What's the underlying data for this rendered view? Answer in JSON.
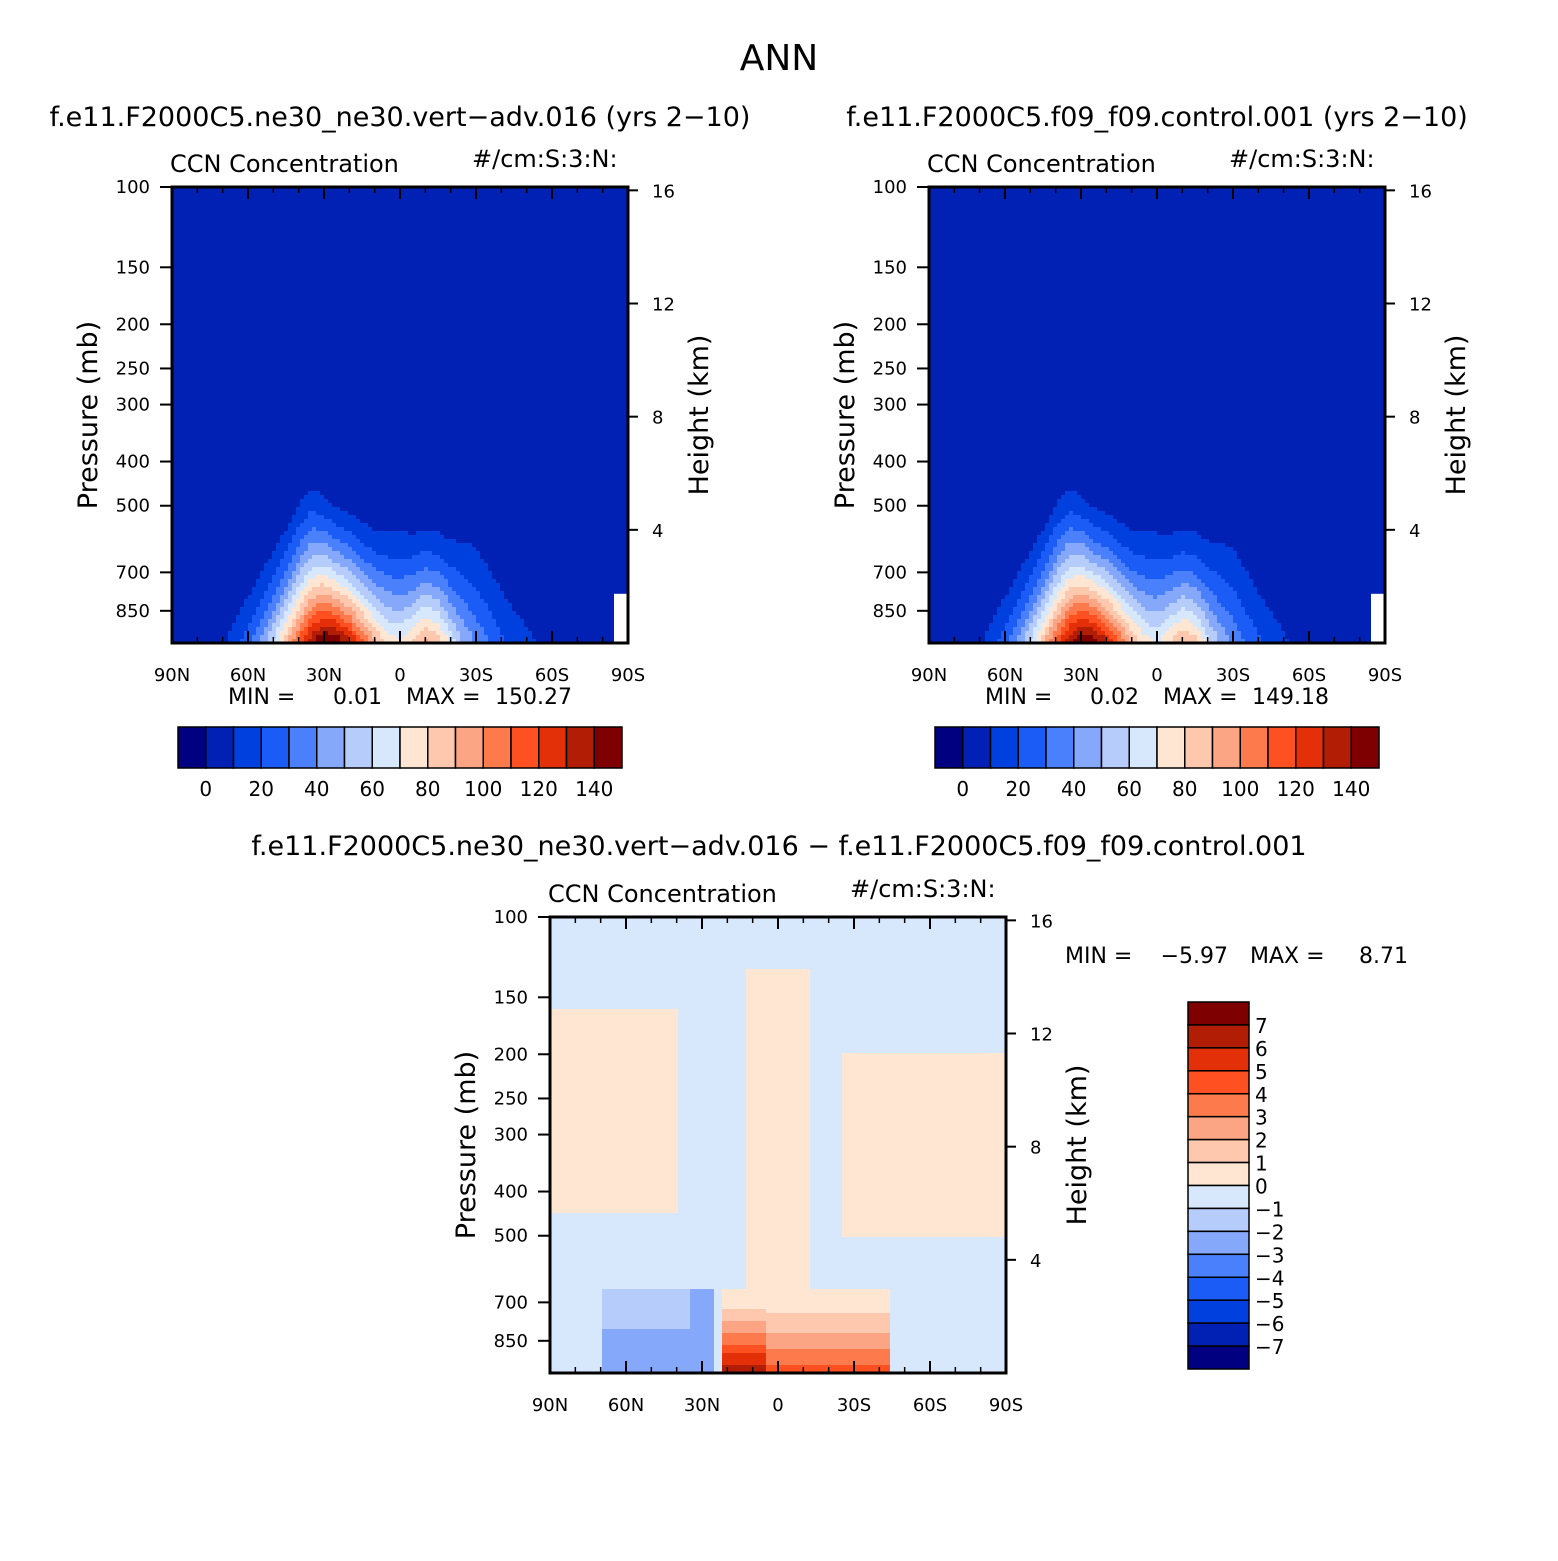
{
  "figure": {
    "title": "ANN",
    "panel_titles": [
      "f.e11.F2000C5.ne30_ne30.vert−adv.016 (yrs 2−10)",
      "f.e11.F2000C5.f09_f09.control.001 (yrs 2−10)",
      "f.e11.F2000C5.ne30_ne30.vert−adv.016 − f.e11.F2000C5.f09_f09.control.001"
    ],
    "variable": "CCN Concentration",
    "units": "#/cm:S:3:N:",
    "ylabel": "Pressure (mb)",
    "ylabel_right": "Height (km)"
  },
  "colors": {
    "main_scale": [
      "#000080",
      "#0021b4",
      "#0040df",
      "#1a5cf5",
      "#4a80fb",
      "#86a8fb",
      "#b6ccfb",
      "#d7e8fc",
      "#fee6d2",
      "#fdc8ad",
      "#fca585",
      "#fc7a4c",
      "#fe5020",
      "#e43008",
      "#b21e05",
      "#7f0000"
    ],
    "diff_scale": [
      "#000080",
      "#0021b4",
      "#0040df",
      "#1a5cf5",
      "#4a80fb",
      "#86a8fb",
      "#b6ccfb",
      "#d7e8fc",
      "#fee6d2",
      "#fdc8ad",
      "#fca585",
      "#fc7a4c",
      "#fe5020",
      "#e43008",
      "#b21e05",
      "#7f0000"
    ]
  },
  "chart_data": [
    {
      "type": "heatmap",
      "title": "f.e11.F2000C5.ne30_ne30.vert−adv.016 (yrs 2−10)",
      "subtitle_left": "CCN Concentration",
      "subtitle_right": "#/cm:S:3:N:",
      "ylabel": "Pressure (mb)",
      "ylabel_right": "Height (km)",
      "x_ticks": [
        "90N",
        "60N",
        "30N",
        "0",
        "30S",
        "60S",
        "90S"
      ],
      "x_values": [
        90,
        60,
        30,
        0,
        -30,
        -60,
        -90
      ],
      "y_ticks": [
        100,
        150,
        200,
        250,
        300,
        400,
        500,
        700,
        850
      ],
      "y_right_ticks": [
        16,
        12,
        8,
        4
      ],
      "ylim": [
        100,
        1000
      ],
      "y_scale": "log",
      "min_label": "MIN =",
      "min_value": "0.01",
      "max_label": "MAX =",
      "max_value": "150.27",
      "colorbar_labels": [
        "0",
        "20",
        "40",
        "60",
        "80",
        "100",
        "120",
        "140"
      ],
      "contour_levels": [
        0,
        10,
        20,
        30,
        40,
        50,
        60,
        70,
        80,
        90,
        100,
        110,
        120,
        130,
        140
      ],
      "profile": {
        "lat": [
          90,
          85,
          80,
          75,
          70,
          65,
          60,
          55,
          50,
          45,
          40,
          35,
          30,
          25,
          20,
          15,
          10,
          5,
          0,
          -5,
          -10,
          -15,
          -20,
          -25,
          -30,
          -35,
          -40,
          -45,
          -50,
          -55,
          -60,
          -65,
          -70,
          -75,
          -80,
          -85,
          -90
        ],
        "surface_max": [
          0,
          1,
          2,
          4,
          8,
          15,
          25,
          40,
          60,
          85,
          110,
          135,
          150,
          145,
          130,
          110,
          90,
          75,
          70,
          80,
          92,
          85,
          65,
          48,
          38,
          30,
          22,
          16,
          12,
          9,
          6,
          4,
          3,
          2,
          1,
          1,
          0
        ],
        "top_pressure": [
          1000,
          1000,
          1000,
          980,
          880,
          770,
          680,
          610,
          560,
          500,
          440,
          410,
          430,
          460,
          470,
          490,
          505,
          500,
          500,
          510,
          505,
          510,
          520,
          510,
          500,
          560,
          620,
          670,
          720,
          760,
          900,
          1000,
          1000,
          1000,
          1000,
          1000,
          1000
        ]
      }
    },
    {
      "type": "heatmap",
      "title": "f.e11.F2000C5.f09_f09.control.001 (yrs 2−10)",
      "subtitle_left": "CCN Concentration",
      "subtitle_right": "#/cm:S:3:N:",
      "ylabel": "Pressure (mb)",
      "ylabel_right": "Height (km)",
      "x_ticks": [
        "90N",
        "60N",
        "30N",
        "0",
        "30S",
        "60S",
        "90S"
      ],
      "x_values": [
        90,
        60,
        30,
        0,
        -30,
        -60,
        -90
      ],
      "y_ticks": [
        100,
        150,
        200,
        250,
        300,
        400,
        500,
        700,
        850
      ],
      "y_right_ticks": [
        16,
        12,
        8,
        4
      ],
      "ylim": [
        100,
        1000
      ],
      "y_scale": "log",
      "min_label": "MIN =",
      "min_value": "0.02",
      "max_label": "MAX =",
      "max_value": "149.18",
      "colorbar_labels": [
        "0",
        "20",
        "40",
        "60",
        "80",
        "100",
        "120",
        "140"
      ],
      "contour_levels": [
        0,
        10,
        20,
        30,
        40,
        50,
        60,
        70,
        80,
        90,
        100,
        110,
        120,
        130,
        140
      ],
      "profile": {
        "lat": [
          90,
          85,
          80,
          75,
          70,
          65,
          60,
          55,
          50,
          45,
          40,
          35,
          30,
          25,
          20,
          15,
          10,
          5,
          0,
          -5,
          -10,
          -15,
          -20,
          -25,
          -30,
          -35,
          -40,
          -45,
          -50,
          -55,
          -60,
          -65,
          -70,
          -75,
          -80,
          -85,
          -90
        ],
        "surface_max": [
          0,
          1,
          2,
          4,
          8,
          15,
          25,
          40,
          60,
          85,
          110,
          134,
          149,
          144,
          129,
          108,
          88,
          73,
          68,
          78,
          90,
          83,
          63,
          47,
          37,
          29,
          21,
          15,
          11,
          8,
          6,
          4,
          3,
          2,
          1,
          1,
          0
        ],
        "top_pressure": [
          1000,
          1000,
          1000,
          980,
          880,
          770,
          680,
          610,
          560,
          500,
          440,
          410,
          430,
          460,
          470,
          490,
          505,
          500,
          500,
          510,
          505,
          510,
          520,
          510,
          500,
          560,
          620,
          670,
          720,
          760,
          900,
          1000,
          1000,
          1000,
          1000,
          1000,
          1000
        ]
      }
    },
    {
      "type": "heatmap",
      "title": "f.e11.F2000C5.ne30_ne30.vert−adv.016 − f.e11.F2000C5.f09_f09.control.001",
      "subtitle_left": "CCN Concentration",
      "subtitle_right": "#/cm:S:3:N:",
      "ylabel": "Pressure (mb)",
      "ylabel_right": "Height (km)",
      "x_ticks": [
        "90N",
        "60N",
        "30N",
        "0",
        "30S",
        "60S",
        "90S"
      ],
      "x_values": [
        90,
        60,
        30,
        0,
        -30,
        -60,
        -90
      ],
      "y_ticks": [
        100,
        150,
        200,
        250,
        300,
        400,
        500,
        700,
        850
      ],
      "y_right_ticks": [
        16,
        12,
        8,
        4
      ],
      "ylim": [
        100,
        1000
      ],
      "y_scale": "log",
      "min_label": "MIN =",
      "min_value": "−5.97",
      "max_label": "MAX =",
      "max_value": "8.71",
      "colorbar_labels": [
        "7",
        "6",
        "5",
        "4",
        "3",
        "2",
        "1",
        "0",
        "−1",
        "−2",
        "−3",
        "−4",
        "−5",
        "−6",
        "−7"
      ],
      "contour_levels": [
        -7,
        -6,
        -5,
        -4,
        -3,
        -2,
        -1,
        0,
        1,
        2,
        3,
        4,
        5,
        6,
        7
      ]
    }
  ]
}
